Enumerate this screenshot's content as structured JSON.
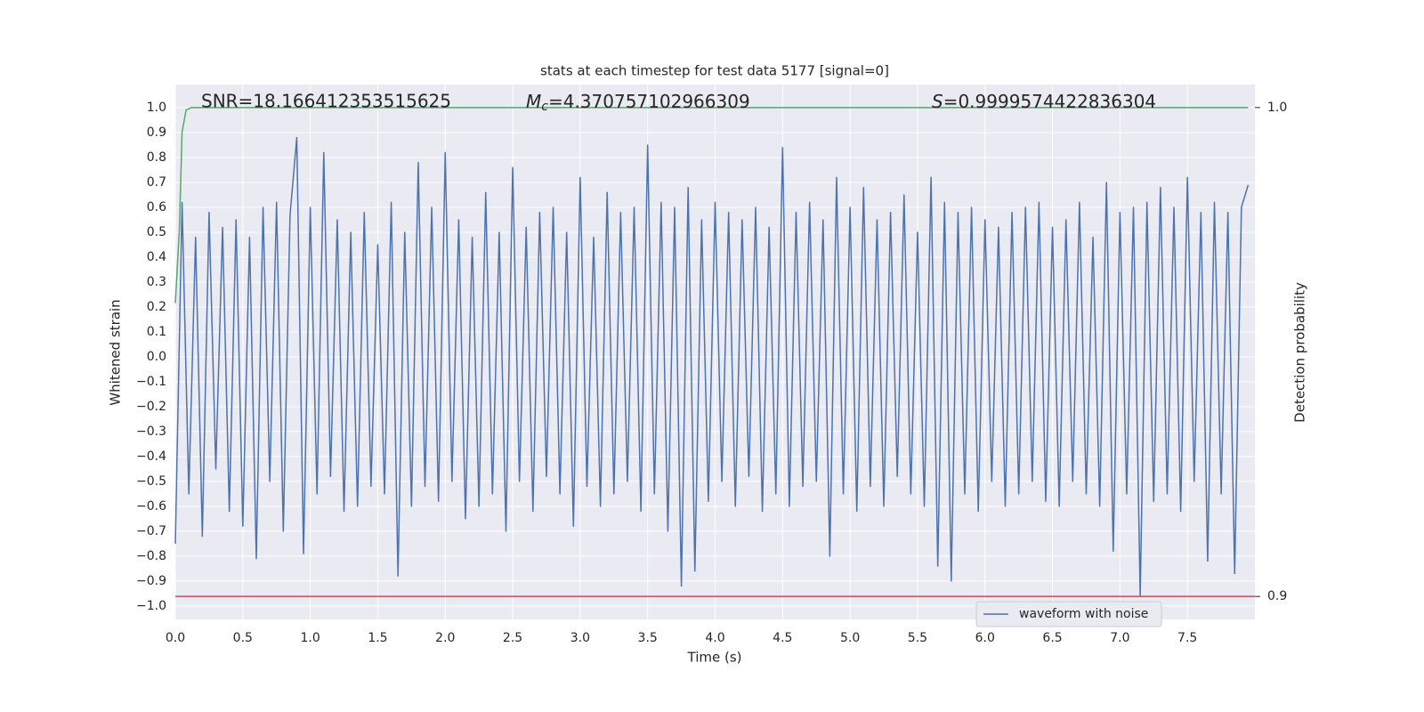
{
  "chart_data": {
    "type": "line",
    "title": "stats at each timestep for test data 5177 [signal=0]",
    "x_label": "Time (s)",
    "y_label": "Whitened strain",
    "y2_label": "Detection probability",
    "annotations": [
      {
        "text": "SNR=18.166412353515625"
      },
      {
        "symbol": "M",
        "subscript": "c",
        "text": "=4.370757102966309"
      },
      {
        "symbol": "S",
        "text": "=0.9999574422836304"
      }
    ],
    "xlim": [
      0,
      8.0
    ],
    "ylim": [
      -1.054,
      1.093
    ],
    "y2lim": [
      0.8953,
      1.0047
    ],
    "xticks": [
      {
        "value": 0,
        "label": "0.0"
      },
      0.5,
      {
        "value": 1,
        "label": "1.0"
      },
      1.5,
      {
        "value": 2,
        "label": "2.0"
      },
      2.5,
      {
        "value": 3,
        "label": "3.0"
      },
      3.5,
      {
        "value": 4,
        "label": "4.0"
      },
      4.5,
      {
        "value": 5,
        "label": "5.0"
      },
      5.5,
      {
        "value": 6,
        "label": "6.0"
      },
      6.5,
      {
        "value": 7,
        "label": "7.0"
      },
      7.5
    ],
    "yticks": [
      {
        "value": -1,
        "label": "−1.0"
      },
      {
        "value": -0.9,
        "label": "−0.9"
      },
      {
        "value": -0.8,
        "label": "−0.8"
      },
      {
        "value": -0.7,
        "label": "−0.7"
      },
      {
        "value": -0.6,
        "label": "−0.6"
      },
      {
        "value": -0.5,
        "label": "−0.5"
      },
      {
        "value": -0.4,
        "label": "−0.4"
      },
      {
        "value": -0.3,
        "label": "−0.3"
      },
      {
        "value": -0.2,
        "label": "−0.2"
      },
      {
        "value": -0.1,
        "label": "−0.1"
      },
      {
        "value": 0,
        "label": "0.0"
      },
      0.1,
      0.2,
      0.3,
      0.4,
      0.5,
      0.6,
      0.7,
      0.8,
      0.9,
      {
        "value": 1,
        "label": "1.0"
      }
    ],
    "y2ticks": [
      0.9,
      {
        "value": 1,
        "label": "1.0"
      }
    ],
    "grid": true,
    "legend": "lower right",
    "series": [
      {
        "name": "waveform with noise",
        "color": "#4c72b0",
        "x": [
          0,
          0.05,
          0.1,
          0.15,
          0.2,
          0.25,
          0.3,
          0.35,
          0.4,
          0.45,
          0.5,
          0.55,
          0.6,
          0.65,
          0.7,
          0.75,
          0.8,
          0.85,
          0.9,
          0.95,
          1,
          1.05,
          1.1,
          1.15,
          1.2,
          1.25,
          1.3,
          1.35,
          1.4,
          1.45,
          1.5,
          1.55,
          1.6,
          1.65,
          1.7,
          1.75,
          1.8,
          1.85,
          1.9,
          1.95,
          2,
          2.05,
          2.1,
          2.15,
          2.2,
          2.25,
          2.3,
          2.35,
          2.4,
          2.45,
          2.5,
          2.55,
          2.6,
          2.65,
          2.7,
          2.75,
          2.8,
          2.85,
          2.9,
          2.95,
          3,
          3.05,
          3.1,
          3.15,
          3.2,
          3.25,
          3.3,
          3.35,
          3.4,
          3.45,
          3.5,
          3.55,
          3.6,
          3.65,
          3.7,
          3.75,
          3.8,
          3.85,
          3.9,
          3.95,
          4,
          4.05,
          4.1,
          4.15,
          4.2,
          4.25,
          4.3,
          4.35,
          4.4,
          4.45,
          4.5,
          4.55,
          4.6,
          4.65,
          4.7,
          4.75,
          4.8,
          4.85,
          4.9,
          4.95,
          5,
          5.05,
          5.1,
          5.15,
          5.2,
          5.25,
          5.3,
          5.35,
          5.4,
          5.45,
          5.5,
          5.55,
          5.6,
          5.65,
          5.7,
          5.75,
          5.8,
          5.85,
          5.9,
          5.95,
          6,
          6.05,
          6.1,
          6.15,
          6.2,
          6.25,
          6.3,
          6.35,
          6.4,
          6.45,
          6.5,
          6.55,
          6.6,
          6.65,
          6.7,
          6.75,
          6.8,
          6.85,
          6.9,
          6.95,
          7,
          7.05,
          7.1,
          7.15,
          7.2,
          7.25,
          7.3,
          7.35,
          7.4,
          7.45,
          7.5,
          7.55,
          7.6,
          7.65,
          7.7,
          7.75,
          7.8,
          7.85,
          7.9,
          7.95
        ],
        "values": [
          -0.75,
          0.62,
          -0.55,
          0.48,
          -0.72,
          0.58,
          -0.45,
          0.52,
          -0.62,
          0.55,
          -0.68,
          0.48,
          -0.81,
          0.6,
          -0.5,
          0.62,
          -0.7,
          0.57,
          0.88,
          -0.79,
          0.6,
          -0.55,
          0.82,
          -0.48,
          0.55,
          -0.62,
          0.5,
          -0.6,
          0.58,
          -0.52,
          0.45,
          -0.55,
          0.62,
          -0.88,
          0.5,
          -0.6,
          0.78,
          -0.52,
          0.6,
          -0.58,
          0.82,
          -0.5,
          0.55,
          -0.65,
          0.48,
          -0.6,
          0.66,
          -0.55,
          0.5,
          -0.7,
          0.76,
          -0.5,
          0.52,
          -0.62,
          0.58,
          -0.48,
          0.6,
          -0.55,
          0.5,
          -0.68,
          0.72,
          -0.52,
          0.48,
          -0.6,
          0.66,
          -0.55,
          0.58,
          -0.5,
          0.6,
          -0.62,
          0.85,
          -0.55,
          0.62,
          -0.7,
          0.6,
          -0.92,
          0.68,
          -0.86,
          0.55,
          -0.58,
          0.62,
          -0.5,
          0.58,
          -0.6,
          0.55,
          -0.48,
          0.6,
          -0.62,
          0.52,
          -0.55,
          0.84,
          -0.6,
          0.58,
          -0.52,
          0.62,
          -0.5,
          0.55,
          -0.8,
          0.72,
          -0.55,
          0.6,
          -0.62,
          0.68,
          -0.52,
          0.55,
          -0.6,
          0.58,
          -0.48,
          0.65,
          -0.55,
          0.5,
          -0.6,
          0.72,
          -0.84,
          0.62,
          -0.9,
          0.58,
          -0.55,
          0.6,
          -0.62,
          0.55,
          -0.5,
          0.52,
          -0.6,
          0.58,
          -0.55,
          0.6,
          -0.5,
          0.62,
          -0.58,
          0.52,
          -0.6,
          0.55,
          -0.5,
          0.62,
          -0.55,
          0.48,
          -0.6,
          0.7,
          -0.78,
          0.58,
          -0.55,
          0.6,
          -0.96,
          0.62,
          -0.58,
          0.68,
          -0.55,
          0.6,
          -0.62,
          0.72,
          -0.5,
          0.58,
          -0.82,
          0.62,
          -0.55,
          0.58,
          -0.87,
          0.6,
          0.69
        ]
      },
      {
        "color": "#55a868",
        "axis": "y2",
        "x": [
          0,
          0.03,
          0.05,
          0.08,
          0.12,
          7.95
        ],
        "values": [
          0.96,
          0.975,
          0.995,
          0.9995,
          1.0,
          1.0
        ]
      },
      {
        "color": "#c44e52",
        "axis": "y2",
        "x": [
          0,
          8.0
        ],
        "values": [
          0.9,
          0.9
        ]
      }
    ]
  }
}
